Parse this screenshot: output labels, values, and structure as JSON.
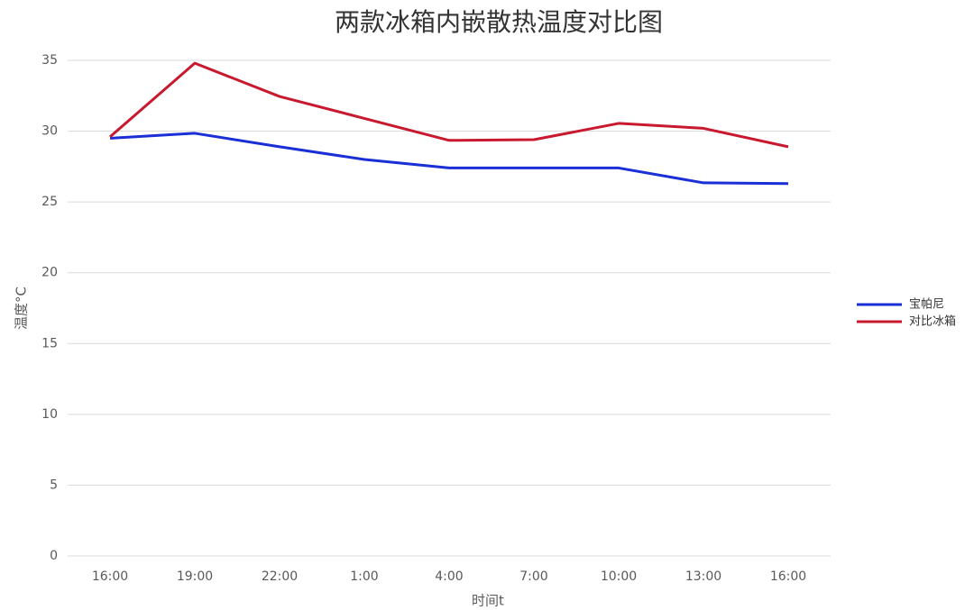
{
  "chart_data": {
    "type": "line",
    "title": "两款冰箱内嵌散热温度对比图",
    "x_label": "时间t",
    "y_label": "温度°C",
    "categories": [
      "16:00",
      "19:00",
      "22:00",
      "1:00",
      "4:00",
      "7:00",
      "10:00",
      "13:00",
      "16:00"
    ],
    "series": [
      {
        "name": "宝帕尼",
        "color": "#1a2fd6",
        "values": [
          29.5,
          29.85,
          28.9,
          28.0,
          27.4,
          27.4,
          27.4,
          26.35,
          26.3
        ]
      },
      {
        "name": "对比冰箱",
        "color": "#c8192e",
        "values": [
          29.6,
          34.8,
          32.45,
          30.9,
          29.35,
          29.4,
          30.55,
          30.2,
          28.9
        ]
      }
    ],
    "ylim": [
      0,
      35
    ],
    "yticks": [
      0,
      5,
      10,
      15,
      20,
      25,
      30,
      35
    ],
    "grid": true,
    "legend": "right"
  }
}
